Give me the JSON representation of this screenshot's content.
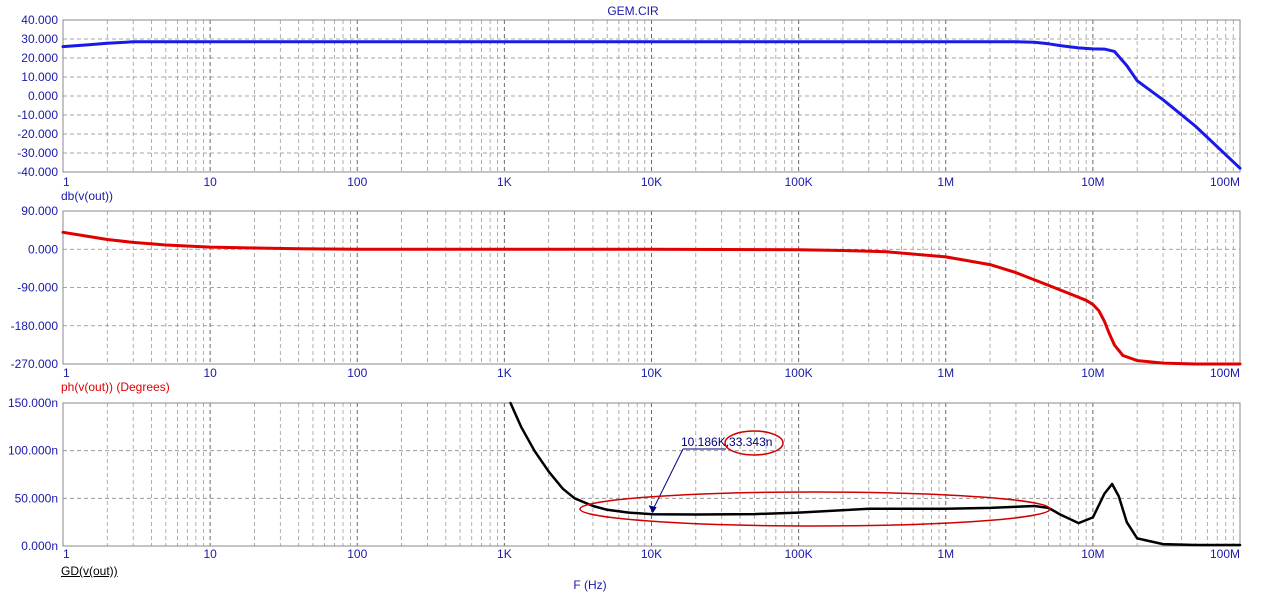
{
  "title": "GEM.CIR",
  "xlabel": "F (Hz)",
  "x_ticks": [
    "1",
    "10",
    "100",
    "1K",
    "10K",
    "100K",
    "1M",
    "10M",
    "100M"
  ],
  "colors": {
    "db": "#1a1ae6",
    "phase": "#e00000",
    "gd": "#000000",
    "axis_text": "#1a1aa8",
    "marker": "#d00000"
  },
  "chart_data": [
    {
      "type": "line",
      "ylabel": "db(v(out))",
      "xscale": "log",
      "xlim": [
        1,
        100000000
      ],
      "ylim": [
        -40,
        40
      ],
      "y_ticks": [
        "40.000",
        "30.000",
        "20.000",
        "10.000",
        "0.000",
        "-10.000",
        "-20.000",
        "-30.000",
        "-40.000"
      ],
      "series": [
        {
          "name": "db(v(out))",
          "x": [
            1,
            1.5,
            2,
            3,
            10,
            100,
            1000,
            10000,
            100000,
            1000000,
            3000000,
            4000000,
            5000000,
            6000000,
            8000000,
            10000000,
            12000000,
            14000000,
            17000000,
            20000000,
            30000000,
            50000000,
            100000000
          ],
          "y": [
            26,
            27,
            27.8,
            28.5,
            28.6,
            28.6,
            28.6,
            28.6,
            28.6,
            28.6,
            28.6,
            28.3,
            27.5,
            26.5,
            25.3,
            24.8,
            24.7,
            23.5,
            16,
            8,
            -2,
            -16,
            -38
          ]
        }
      ]
    },
    {
      "type": "line",
      "ylabel": "ph(v(out)) (Degrees)",
      "xscale": "log",
      "xlim": [
        1,
        100000000
      ],
      "ylim": [
        -270,
        90
      ],
      "y_ticks": [
        "90.000",
        "0.000",
        "-90.000",
        "-180.000",
        "-270.000"
      ],
      "series": [
        {
          "name": "ph(v(out)) (Degrees)",
          "x": [
            1,
            1.5,
            2,
            3,
            5,
            10,
            20,
            40,
            100,
            1000,
            10000,
            100000,
            200000,
            400000,
            1000000,
            2000000,
            3000000,
            5000000,
            7000000,
            9000000,
            10000000,
            11000000,
            12000000,
            13000000,
            14000000,
            16000000,
            20000000,
            30000000,
            50000000,
            100000000
          ],
          "y": [
            40,
            30,
            23,
            16,
            10,
            5,
            3,
            1,
            0,
            0,
            0,
            -1,
            -3,
            -6,
            -18,
            -36,
            -55,
            -85,
            -105,
            -120,
            -130,
            -145,
            -170,
            -200,
            -225,
            -250,
            -262,
            -268,
            -270,
            -270
          ]
        }
      ]
    },
    {
      "type": "line",
      "ylabel": "GD(v(out))",
      "xscale": "log",
      "xlim": [
        1,
        100000000
      ],
      "ylim": [
        0,
        150
      ],
      "y_ticks": [
        "150.000n",
        "100.000n",
        "50.000n",
        "0.000n"
      ],
      "annotations": [
        {
          "x": 10186,
          "y": 33.343,
          "label_x": "10.186K",
          "label_y": "33.343n"
        }
      ],
      "series": [
        {
          "name": "GD(v(out))",
          "x": [
            1100,
            1300,
            1600,
            2000,
            2500,
            3000,
            4000,
            5000,
            7000,
            10186,
            20000,
            50000,
            100000,
            300000,
            1000000,
            2000000,
            4000000,
            5000000,
            6000000,
            8000000,
            10000000,
            12000000,
            13500000,
            15000000,
            17000000,
            20000000,
            30000000,
            50000000,
            100000000
          ],
          "y": [
            150,
            125,
            100,
            78,
            60,
            50,
            42,
            38,
            35,
            33.343,
            33,
            33.5,
            35,
            39,
            39,
            40,
            42,
            40,
            33,
            24,
            30,
            55,
            65,
            52,
            25,
            8,
            2,
            1,
            1
          ]
        }
      ]
    }
  ]
}
